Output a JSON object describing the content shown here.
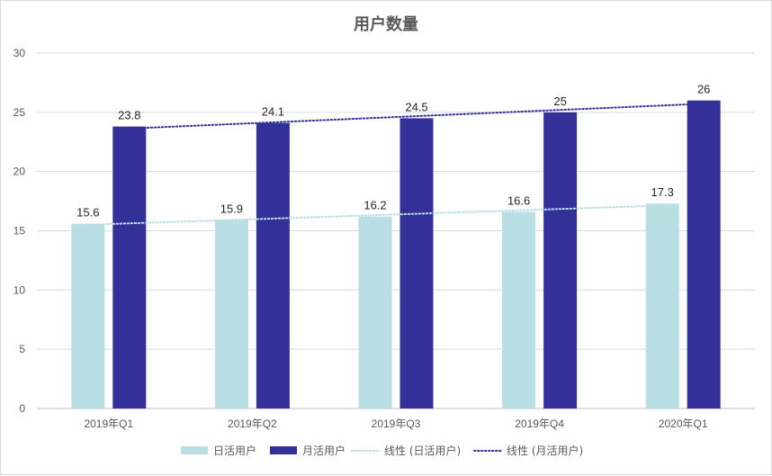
{
  "chart_data": {
    "type": "bar",
    "title": "用户数量",
    "categories": [
      "2019年Q1",
      "2019年Q2",
      "2019年Q3",
      "2019年Q4",
      "2020年Q1"
    ],
    "series": [
      {
        "name": "日活用户",
        "values": [
          15.6,
          15.9,
          16.2,
          16.6,
          17.3
        ],
        "color": "#b9dfe4"
      },
      {
        "name": "月活用户",
        "values": [
          23.8,
          24.1,
          24.5,
          25,
          26
        ],
        "color": "#33309a"
      }
    ],
    "trendlines": [
      {
        "name": "线性 (日活用户)",
        "series": 0,
        "style": "dotted",
        "color": "#b9dfe4"
      },
      {
        "name": "线性 (月活用户)",
        "series": 1,
        "style": "dotted",
        "color": "#33309a"
      }
    ],
    "ylim": [
      0,
      30
    ],
    "yticks": [
      0,
      5,
      10,
      15,
      20,
      25,
      30
    ],
    "grid": true,
    "legend": "bottom"
  }
}
